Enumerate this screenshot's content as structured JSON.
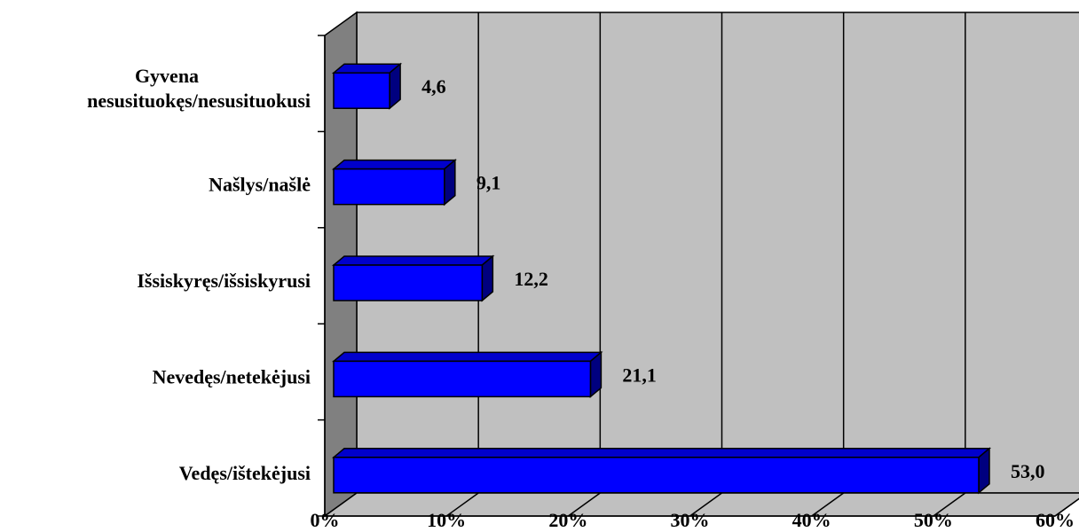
{
  "chart_data": {
    "type": "bar",
    "orientation": "horizontal",
    "style": "3d",
    "categories": [
      [
        "Gyvena",
        "nesusituokęs/nesusituokusi"
      ],
      [
        "Našlys/našlė"
      ],
      [
        "Išsiskyręs/išsiskyrusi"
      ],
      [
        "Nevedęs/netekėjusi"
      ],
      [
        "Vedęs/ištekėjusi"
      ]
    ],
    "values": [
      4.6,
      9.1,
      12.2,
      21.1,
      53.0
    ],
    "value_labels": [
      "4,6",
      "9,1",
      "12,2",
      "21,1",
      "53,0"
    ],
    "xlim": [
      0,
      60
    ],
    "x_ticks": [
      0,
      10,
      20,
      30,
      40,
      50,
      60
    ],
    "x_tick_labels": [
      "0%",
      "10%",
      "20%",
      "30%",
      "40%",
      "50%",
      "60%"
    ],
    "grid": true,
    "legend": "none",
    "colors": {
      "bar_front": "#0000ff",
      "bar_top": "#0000cc",
      "bar_side": "#00007f",
      "back_wall": "#c0c0c0",
      "side_wall": "#808080",
      "floor": "#c0c0c0",
      "gridline": "#000000"
    }
  }
}
